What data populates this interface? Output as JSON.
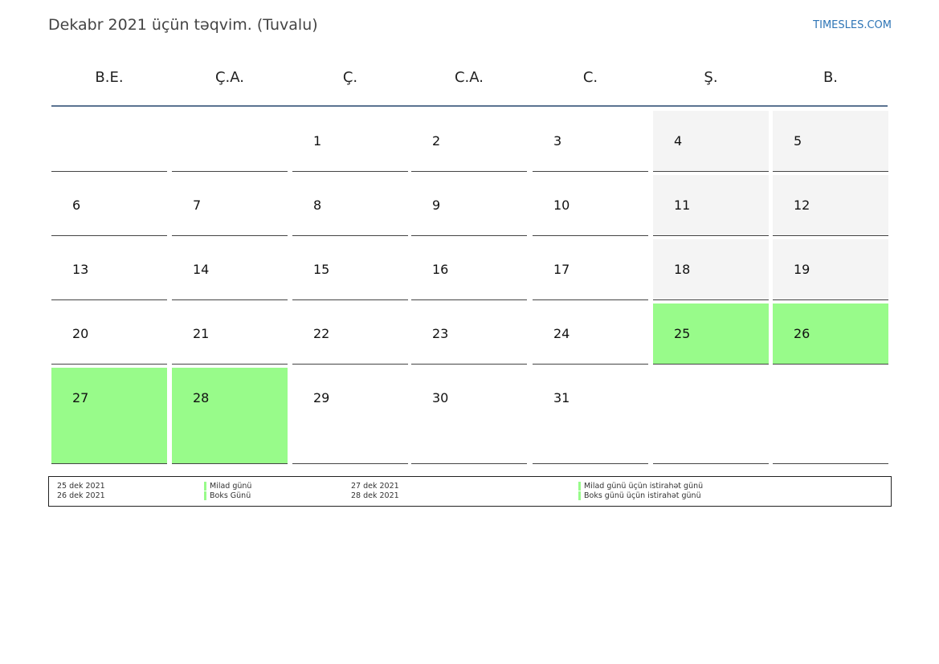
{
  "header": {
    "title": "Dekabr 2021 üçün təqvim. (Tuvalu)",
    "site": "TIMESLES.COM"
  },
  "weekdays": [
    "B.E.",
    "Ç.A.",
    "Ç.",
    "C.A.",
    "C.",
    "Ş.",
    "B."
  ],
  "weeks": [
    [
      {
        "day": null,
        "kind": "blank"
      },
      {
        "day": null,
        "kind": "blank"
      },
      {
        "day": 1,
        "kind": "weekday"
      },
      {
        "day": 2,
        "kind": "weekday"
      },
      {
        "day": 3,
        "kind": "weekday"
      },
      {
        "day": 4,
        "kind": "weekend"
      },
      {
        "day": 5,
        "kind": "weekend"
      }
    ],
    [
      {
        "day": 6,
        "kind": "weekday"
      },
      {
        "day": 7,
        "kind": "weekday"
      },
      {
        "day": 8,
        "kind": "weekday"
      },
      {
        "day": 9,
        "kind": "weekday"
      },
      {
        "day": 10,
        "kind": "weekday"
      },
      {
        "day": 11,
        "kind": "weekend"
      },
      {
        "day": 12,
        "kind": "weekend"
      }
    ],
    [
      {
        "day": 13,
        "kind": "weekday"
      },
      {
        "day": 14,
        "kind": "weekday"
      },
      {
        "day": 15,
        "kind": "weekday"
      },
      {
        "day": 16,
        "kind": "weekday"
      },
      {
        "day": 17,
        "kind": "weekday"
      },
      {
        "day": 18,
        "kind": "weekend"
      },
      {
        "day": 19,
        "kind": "weekend"
      }
    ],
    [
      {
        "day": 20,
        "kind": "weekday"
      },
      {
        "day": 21,
        "kind": "weekday"
      },
      {
        "day": 22,
        "kind": "weekday"
      },
      {
        "day": 23,
        "kind": "weekday"
      },
      {
        "day": 24,
        "kind": "weekday"
      },
      {
        "day": 25,
        "kind": "holiday"
      },
      {
        "day": 26,
        "kind": "holiday"
      }
    ],
    [
      {
        "day": 27,
        "kind": "holiday"
      },
      {
        "day": 28,
        "kind": "holiday"
      },
      {
        "day": 29,
        "kind": "weekday"
      },
      {
        "day": 30,
        "kind": "weekday"
      },
      {
        "day": 31,
        "kind": "weekday"
      },
      {
        "day": null,
        "kind": "blank"
      },
      {
        "day": null,
        "kind": "blank"
      }
    ]
  ],
  "legend": [
    {
      "date": "25 dek 2021",
      "name": "Milad günü"
    },
    {
      "date": "26 dek 2021",
      "name": "Boks Günü"
    },
    {
      "date": "27 dek 2021",
      "name": "Milad günü üçün istirahət günü"
    },
    {
      "date": "28 dek 2021",
      "name": "Boks günü üçün istirahət günü"
    }
  ]
}
